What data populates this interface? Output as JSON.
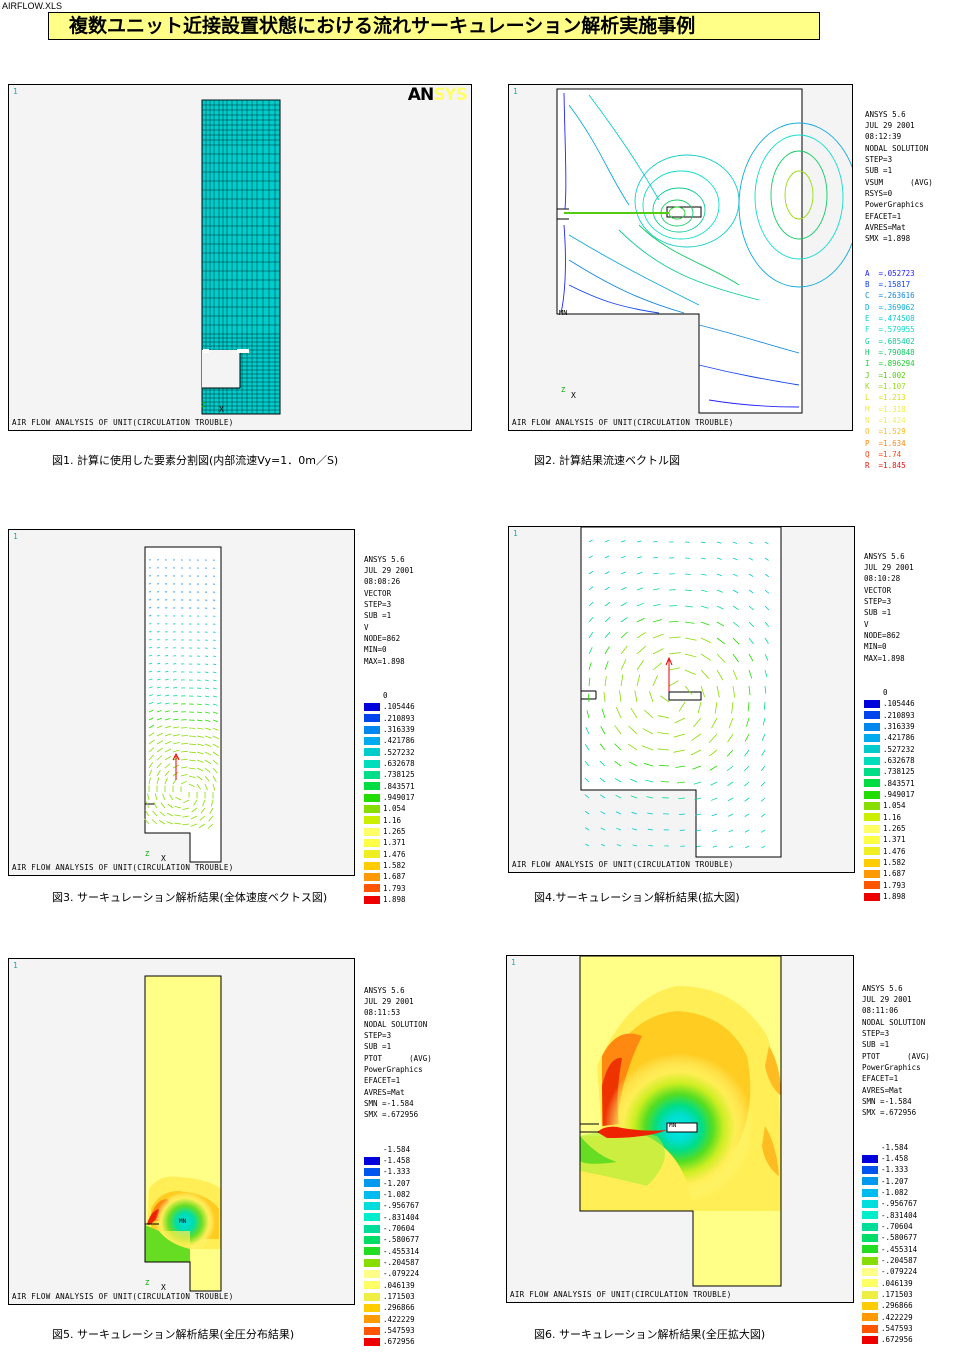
{
  "file_name": "AIRFLOW.XLS",
  "title": "複数ユニット近接設置状態における流れサーキュレーション解析実施事例",
  "footer_text": "AIR FLOW ANALYSIS OF UNIT(CIRCULATION TROUBLE)",
  "panel_number": "1",
  "logo": {
    "an": "AN",
    "sys": "SYS"
  },
  "axis_z": "Z",
  "axis_x": "X",
  "mn": "MN",
  "mx": "MX",
  "captions": {
    "fig1": "図1. 計算に使用した要素分割図(内部流速Vy=1．0m／S)",
    "fig2": "図2. 計算結果流速ベクトル図",
    "fig3": "図3. サーキュレーション解析結果(全体速度ベクトス図)",
    "fig4": "図4.サーキュレーション解析結果(拡大図)",
    "fig5": "図5. サーキュレーション解析結果(全圧分布結果)",
    "fig6": "図6. サーキュレーション解析結果(全圧拡大図)"
  },
  "fig2_info": [
    "ANSYS 5.6",
    "JUL 29 2001",
    "08:12:39",
    "NODAL SOLUTION",
    "STEP=3",
    "SUB =1",
    "VSUM      (AVG)",
    "RSYS=0",
    "PowerGraphics",
    "EFACET=1",
    "AVRES=Mat",
    "SMX =1.898"
  ],
  "fig2_legend": [
    {
      "letter": "A",
      "value": "=.052723",
      "color": "#2222ff"
    },
    {
      "letter": "B",
      "value": "=.15817",
      "color": "#1144ee"
    },
    {
      "letter": "C",
      "value": "=.263616",
      "color": "#1188dd"
    },
    {
      "letter": "D",
      "value": "=.369062",
      "color": "#11aadd"
    },
    {
      "letter": "E",
      "value": "=.474508",
      "color": "#11cccc"
    },
    {
      "letter": "F",
      "value": "=.579955",
      "color": "#11ddcc"
    },
    {
      "letter": "G",
      "value": "=.685402",
      "color": "#11cc99"
    },
    {
      "letter": "H",
      "value": "=.790848",
      "color": "#11cc66"
    },
    {
      "letter": "I",
      "value": "=.896294",
      "color": "#22cc33"
    },
    {
      "letter": "J",
      "value": "=1.002",
      "color": "#55cc11"
    },
    {
      "letter": "K",
      "value": "=1.107",
      "color": "#99dd11"
    },
    {
      "letter": "L",
      "value": "=1.213",
      "color": "#dddd11"
    },
    {
      "letter": "M",
      "value": "=1.318",
      "color": "#eeee44"
    },
    {
      "letter": "N",
      "value": "=1.424",
      "color": "#eeee66"
    },
    {
      "letter": "O",
      "value": "=1.529",
      "color": "#ffbb22"
    },
    {
      "letter": "P",
      "value": "=1.634",
      "color": "#ff8811"
    },
    {
      "letter": "Q",
      "value": "=1.74",
      "color": "#ff4411"
    },
    {
      "letter": "R",
      "value": "=1.845",
      "color": "#ee1111"
    }
  ],
  "fig3_info": [
    "ANSYS 5.6",
    "JUL 29 2001",
    "08:08:26",
    "VECTOR",
    "STEP=3",
    "SUB =1",
    "V",
    "NODE=862",
    "MIN=0",
    "MAX=1.898"
  ],
  "fig4_info": [
    "ANSYS 5.6",
    "JUL 29 2001",
    "08:10:28",
    "VECTOR",
    "STEP=3",
    "SUB =1",
    "V",
    "NODE=862",
    "MIN=0",
    "MAX=1.898"
  ],
  "vec_legend_top": "0",
  "vec_legend": [
    {
      "value": ".105446",
      "color": "#0000dd"
    },
    {
      "value": ".210893",
      "color": "#0044ee"
    },
    {
      "value": ".316339",
      "color": "#0088ee"
    },
    {
      "value": ".421786",
      "color": "#00aaee"
    },
    {
      "value": ".527232",
      "color": "#00cccc"
    },
    {
      "value": ".632678",
      "color": "#00ddbb"
    },
    {
      "value": ".738125",
      "color": "#00dd88"
    },
    {
      "value": ".843571",
      "color": "#00dd44"
    },
    {
      "value": ".949017",
      "color": "#22dd00"
    },
    {
      "value": "1.054",
      "color": "#88dd00"
    },
    {
      "value": "1.16",
      "color": "#ccee00"
    },
    {
      "value": "1.265",
      "color": "#ffff66"
    },
    {
      "value": "1.371",
      "color": "#ffff44"
    },
    {
      "value": "1.476",
      "color": "#eeee22"
    },
    {
      "value": "1.582",
      "color": "#ffcc00"
    },
    {
      "value": "1.687",
      "color": "#ff9900"
    },
    {
      "value": "1.793",
      "color": "#ff5500"
    },
    {
      "value": "1.898",
      "color": "#ee0000"
    }
  ],
  "fig5_info": [
    "ANSYS 5.6",
    "JUL 29 2001",
    "08:11:53",
    "NODAL SOLUTION",
    "STEP=3",
    "SUB =1",
    "PTOT      (AVG)",
    "PowerGraphics",
    "EFACET=1",
    "AVRES=Mat",
    "SMN =-1.584",
    "SMX =.672956"
  ],
  "fig6_info": [
    "ANSYS 5.6",
    "JUL 29 2001",
    "08:11:06",
    "NODAL SOLUTION",
    "STEP=3",
    "SUB =1",
    "PTOT      (AVG)",
    "PowerGraphics",
    "EFACET=1",
    "AVRES=Mat",
    "SMN =-1.584",
    "SMX =.672956"
  ],
  "ptot_legend_top": "-1.584",
  "ptot_legend": [
    {
      "value": "-1.458",
      "color": "#0000dd"
    },
    {
      "value": "-1.333",
      "color": "#0055ee"
    },
    {
      "value": "-1.207",
      "color": "#0099ee"
    },
    {
      "value": "-1.082",
      "color": "#00bbee"
    },
    {
      "value": "-.956767",
      "color": "#00dddd"
    },
    {
      "value": "-.831404",
      "color": "#00eecc"
    },
    {
      "value": "-.70604",
      "color": "#00dd99"
    },
    {
      "value": "-.580677",
      "color": "#00dd66"
    },
    {
      "value": "-.455314",
      "color": "#22dd22"
    },
    {
      "value": "-.204587",
      "color": "#88dd00"
    },
    {
      "value": "-.079224",
      "color": "#ffff88"
    },
    {
      "value": ".046139",
      "color": "#ffff66"
    },
    {
      "value": ".171503",
      "color": "#eeee44"
    },
    {
      "value": ".296866",
      "color": "#ffcc00"
    },
    {
      "value": ".422229",
      "color": "#ff9900"
    },
    {
      "value": ".547593",
      "color": "#ff5500"
    },
    {
      "value": ".672956",
      "color": "#ee0000"
    }
  ]
}
